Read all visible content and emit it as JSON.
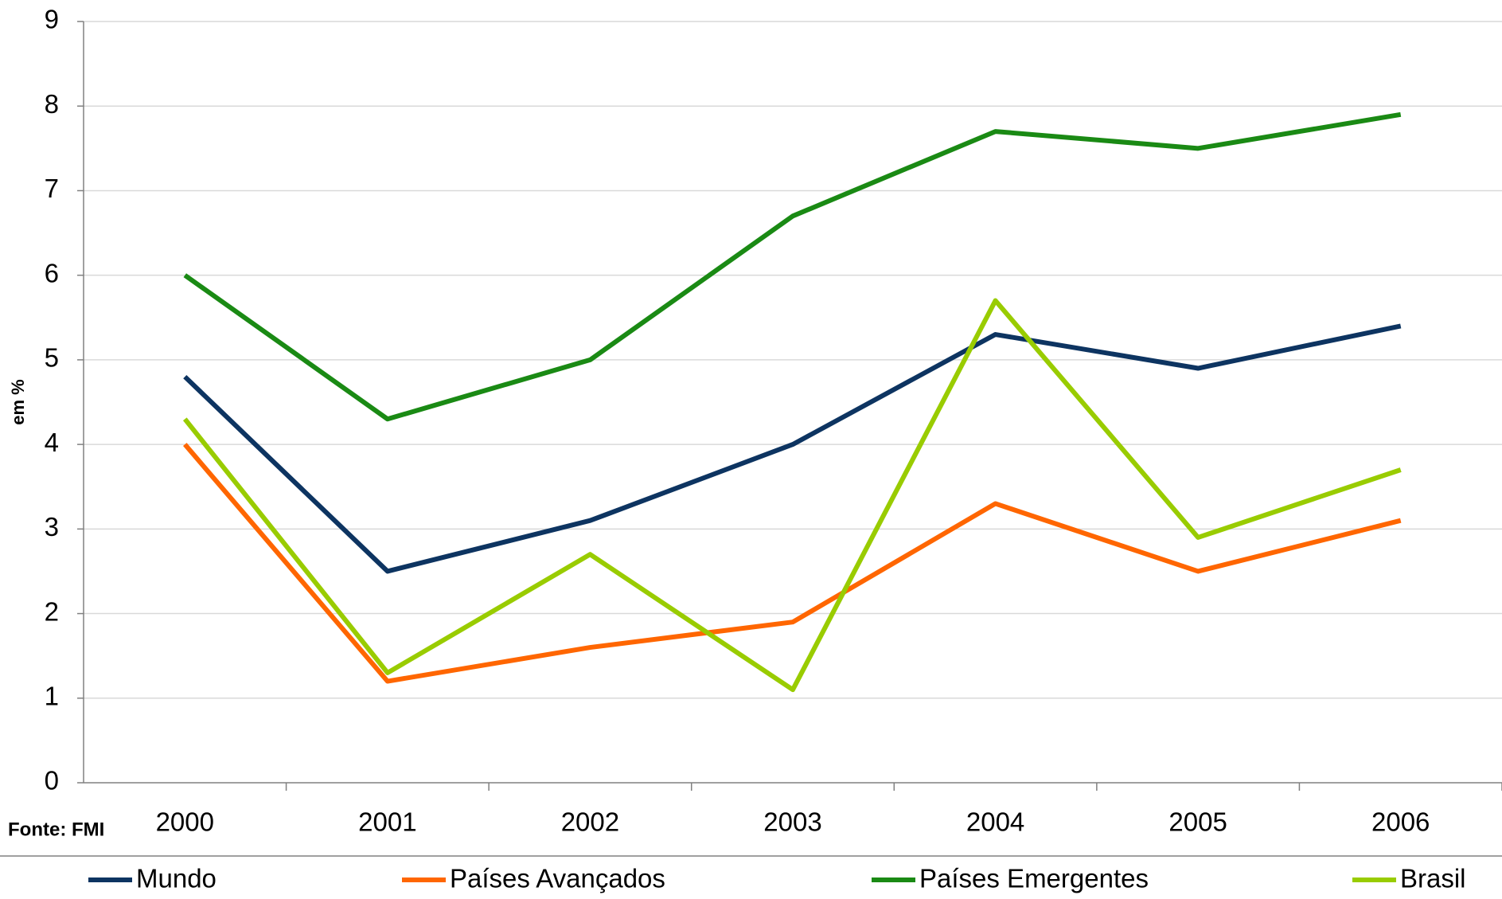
{
  "chart_data": {
    "type": "line",
    "y_label": "em %",
    "source": "Fonte: FMI",
    "categories": [
      "2000",
      "2001",
      "2002",
      "2003",
      "2004",
      "2005",
      "2006"
    ],
    "series": [
      {
        "name": "Mundo",
        "color": "#0d3461",
        "values": [
          4.8,
          2.5,
          3.1,
          4.0,
          5.3,
          4.9,
          5.4
        ]
      },
      {
        "name": "Países Avançados",
        "color": "#ff6600",
        "values": [
          4.0,
          1.2,
          1.6,
          1.9,
          3.3,
          2.5,
          3.1
        ]
      },
      {
        "name": "Países Emergentes",
        "color": "#1a8a14",
        "values": [
          6.0,
          4.3,
          5.0,
          6.7,
          7.7,
          7.5,
          7.9
        ]
      },
      {
        "name": "Brasil",
        "color": "#99cc00",
        "values": [
          4.3,
          1.3,
          2.7,
          1.1,
          5.7,
          2.9,
          3.7
        ]
      }
    ],
    "ylim": [
      0,
      9
    ],
    "yticks": [
      0,
      1,
      2,
      3,
      4,
      5,
      6,
      7,
      8,
      9
    ],
    "grid": true
  }
}
